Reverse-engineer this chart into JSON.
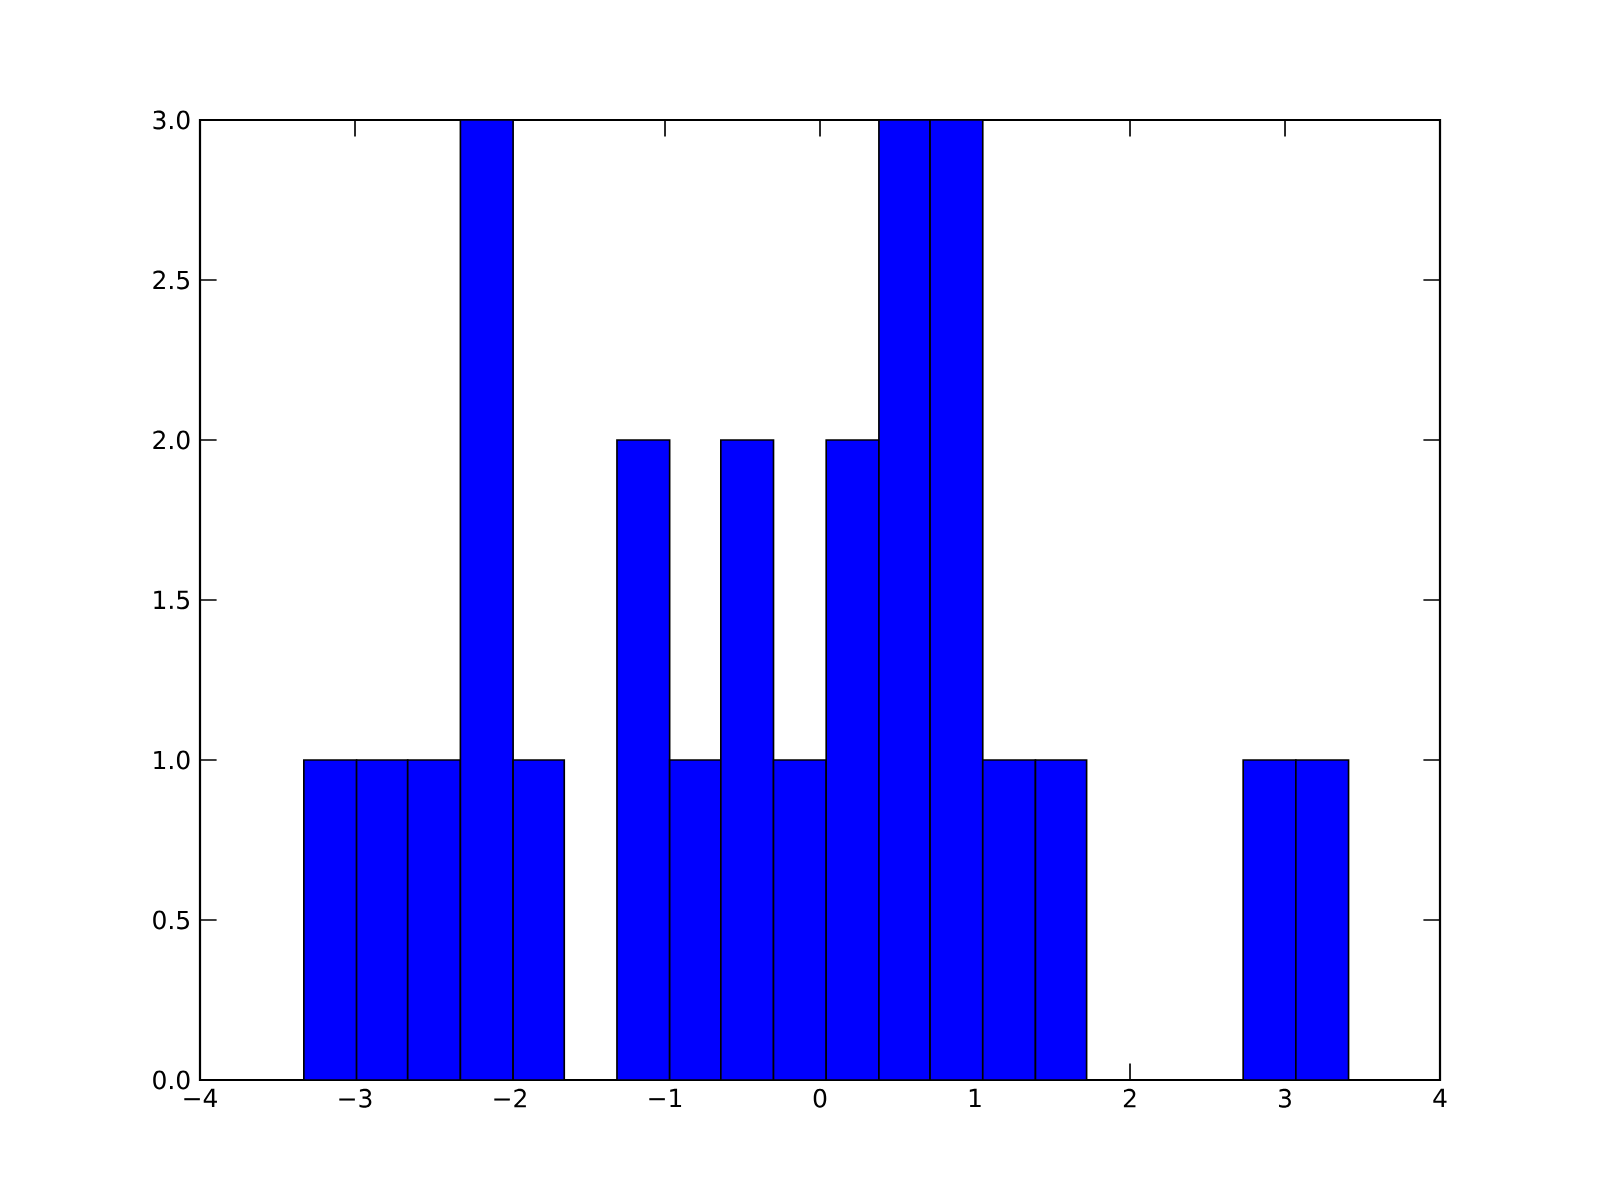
{
  "chart_data": {
    "type": "histogram",
    "color": "#0000ff",
    "bins": [
      -3.33,
      -2.99,
      -2.66,
      -2.32,
      -1.98,
      -1.65,
      -1.31,
      -0.97,
      -0.64,
      -0.3,
      0.04,
      0.38,
      0.71,
      1.05,
      1.39,
      1.72,
      2.73,
      3.07,
      3.41
    ],
    "values": [
      1,
      1,
      1,
      3,
      1,
      0,
      2,
      1,
      2,
      1,
      2,
      3,
      3,
      1,
      1,
      0,
      1,
      1
    ],
    "xlim": [
      -4,
      4
    ],
    "ylim": [
      0,
      3
    ],
    "xticks": [
      {
        "value": -4,
        "label": "−4"
      },
      {
        "value": -3,
        "label": "−3"
      },
      {
        "value": -2,
        "label": "−2"
      },
      {
        "value": -1,
        "label": "−1"
      },
      {
        "value": 0,
        "label": "0"
      },
      {
        "value": 1,
        "label": "1"
      },
      {
        "value": 2,
        "label": "2"
      },
      {
        "value": 3,
        "label": "3"
      },
      {
        "value": 4,
        "label": "4"
      }
    ],
    "yticks": [
      {
        "value": 0,
        "label": "0.0"
      },
      {
        "value": 0.5,
        "label": "0.5"
      },
      {
        "value": 1,
        "label": "1.0"
      },
      {
        "value": 1.5,
        "label": "1.5"
      },
      {
        "value": 2,
        "label": "2.0"
      },
      {
        "value": 2.5,
        "label": "2.5"
      },
      {
        "value": 3,
        "label": "3.0"
      }
    ],
    "grid": false
  }
}
